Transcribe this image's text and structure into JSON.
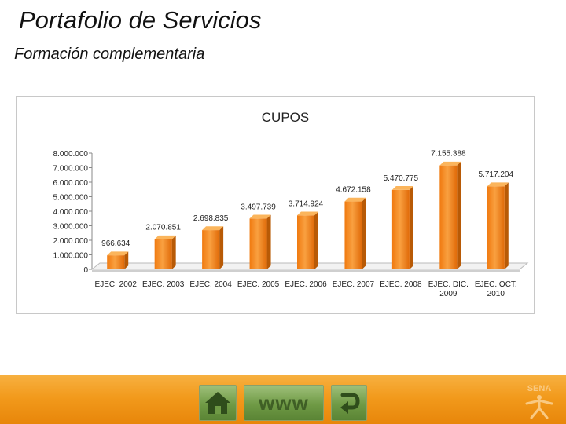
{
  "header": {
    "title": "Portafolio de Servicios",
    "subtitle": "Formación complementaria"
  },
  "chart_data": {
    "type": "bar",
    "title": "CUPOS",
    "categories": [
      [
        "EJEC. 2002"
      ],
      [
        "EJEC. 2003"
      ],
      [
        "EJEC. 2004"
      ],
      [
        "EJEC. 2005"
      ],
      [
        "EJEC. 2006"
      ],
      [
        "EJEC. 2007"
      ],
      [
        "EJEC. 2008"
      ],
      [
        "EJEC. DIC.",
        "2009"
      ],
      [
        "EJEC. OCT.",
        "2010"
      ]
    ],
    "values": [
      966634,
      2070851,
      2698835,
      3497739,
      3714924,
      4672158,
      5470775,
      7155388,
      5717204
    ],
    "data_labels": [
      "966.634",
      "2.070.851",
      "2.698.835",
      "3.497.739",
      "3.714.924",
      "4.672.158",
      "5.470.775",
      "7.155.388",
      "5.717.204"
    ],
    "y_ticks": [
      0,
      1000000,
      2000000,
      3000000,
      4000000,
      5000000,
      6000000,
      7000000,
      8000000
    ],
    "y_tick_labels": [
      "0",
      "1.000.000",
      "2.000.000",
      "3.000.000",
      "4.000.000",
      "5.000.000",
      "6.000.000",
      "7.000.000",
      "8.000.000"
    ],
    "ylim": [
      0,
      8000000
    ],
    "grid": false,
    "legend": "none",
    "bar_color": "#f28c1c"
  },
  "footer": {
    "www_label": "www",
    "logo_text": "SENA",
    "home_icon": "home-icon",
    "back_icon": "return-arrow-icon"
  }
}
